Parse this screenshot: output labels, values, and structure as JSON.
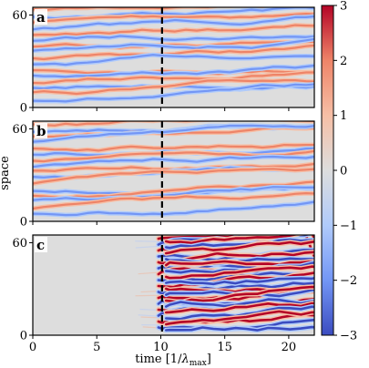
{
  "chart_data": {
    "type": "heatmap",
    "description_note": "",
    "xlabel_prefix": "time [1/",
    "xlabel_lambda": "λ",
    "xlabel_sub": "max",
    "xlabel_suffix": "]",
    "ylabel": "space",
    "xlim": [
      0,
      22
    ],
    "ylim": [
      0,
      65
    ],
    "xticks": [
      {
        "value": 0,
        "label": "0"
      },
      {
        "value": 5,
        "label": "5"
      },
      {
        "value": 10,
        "label": "10"
      },
      {
        "value": 15,
        "label": "15"
      },
      {
        "value": 20,
        "label": "20"
      }
    ],
    "yticks": [
      {
        "value": 0,
        "label": "0"
      },
      {
        "value": 60,
        "label": "60"
      }
    ],
    "dashed_line_x": 10.1,
    "panels": [
      {
        "label": "a",
        "pattern": "stripes",
        "noise_before_t": null
      },
      {
        "label": "b",
        "pattern": "stripes",
        "noise_before_t": null
      },
      {
        "label": "c",
        "pattern": "quiescent_then_turbulent",
        "noise_before_t": 10.1
      }
    ],
    "colorbar": {
      "min": -3,
      "max": 3,
      "ticks": [
        {
          "value": 3,
          "label": "3"
        },
        {
          "value": 2,
          "label": "2"
        },
        {
          "value": 1,
          "label": "1"
        },
        {
          "value": 0,
          "label": "0"
        },
        {
          "value": -1,
          "label": "−1"
        },
        {
          "value": -2,
          "label": "−2"
        },
        {
          "value": -3,
          "label": "−3"
        }
      ],
      "colormap": "coolwarm",
      "colors": [
        "#3b4cc0",
        "#7396f5",
        "#b0cbfb",
        "#dddddd",
        "#f6bfa6",
        "#ee8468",
        "#b40426"
      ]
    }
  }
}
